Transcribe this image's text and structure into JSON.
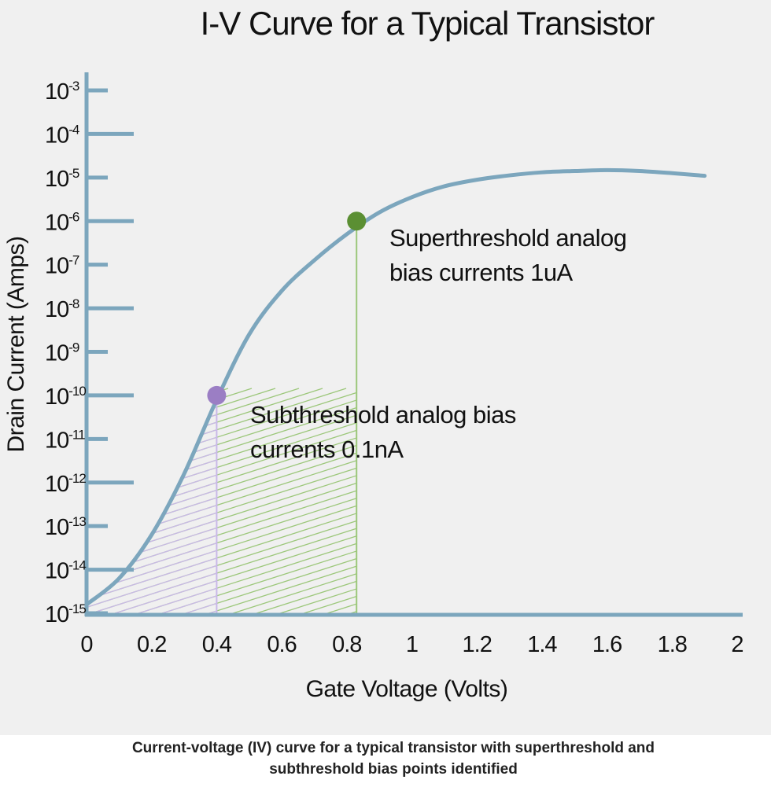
{
  "chart_data": {
    "type": "line",
    "title": "I-V Curve for a Typical Transistor",
    "xlabel": "Gate Voltage (Volts)",
    "ylabel": "Drain Current (Amps)",
    "yscale": "log",
    "xlim": [
      0,
      2
    ],
    "ylim_exponents": [
      -15,
      -3
    ],
    "x_ticks": [
      "0",
      "0.2",
      "0.4",
      "0.6",
      "0.8",
      "1",
      "1.2",
      "1.4",
      "1.6",
      "1.8",
      "2"
    ],
    "y_ticks": [
      {
        "base": "10",
        "exp": "-3"
      },
      {
        "base": "10",
        "exp": "-4"
      },
      {
        "base": "10",
        "exp": "-5"
      },
      {
        "base": "10",
        "exp": "-6"
      },
      {
        "base": "10",
        "exp": "-7"
      },
      {
        "base": "10",
        "exp": "-8"
      },
      {
        "base": "10",
        "exp": "-9"
      },
      {
        "base": "10",
        "exp": "-10"
      },
      {
        "base": "10",
        "exp": "-11"
      },
      {
        "base": "10",
        "exp": "-12"
      },
      {
        "base": "10",
        "exp": "-13"
      },
      {
        "base": "10",
        "exp": "-14"
      },
      {
        "base": "10",
        "exp": "-15"
      }
    ],
    "curve": {
      "x": [
        0,
        0.1,
        0.2,
        0.3,
        0.4,
        0.5,
        0.6,
        0.7,
        0.8,
        0.9,
        1.0,
        1.1,
        1.2,
        1.3,
        1.4,
        1.5,
        1.6,
        1.7,
        1.8,
        1.9
      ],
      "log10_y": [
        -14.8,
        -14.2,
        -13.2,
        -11.8,
        -10.1,
        -8.6,
        -7.6,
        -6.9,
        -6.3,
        -5.8,
        -5.45,
        -5.2,
        -5.05,
        -4.95,
        -4.88,
        -4.85,
        -4.83,
        -4.85,
        -4.9,
        -4.96
      ]
    },
    "points": [
      {
        "x": 0.4,
        "log10_y": -10,
        "color": "#9b7ec4",
        "label": "Subthreshold analog bias currents 0.1nA"
      },
      {
        "x": 0.83,
        "log10_y": -6,
        "color": "#5b8f33",
        "label": "Superthreshold analog bias currents 1uA"
      }
    ],
    "colors": {
      "curve": "#7ca6bd",
      "axis": "#7ca6bd",
      "subthreshold_hatch": "#c9b8e8",
      "superthreshold_hatch": "#9cc77a"
    },
    "grid": false
  },
  "annotations": {
    "super_line1": "Superthreshold analog",
    "super_line2": "bias currents 1uA",
    "sub_line1": "Subthreshold analog bias",
    "sub_line2": "currents 0.1nA"
  },
  "caption_line1": "Current-voltage (IV) curve for a typical transistor with superthreshold and",
  "caption_line2": "subthreshold bias points identified"
}
